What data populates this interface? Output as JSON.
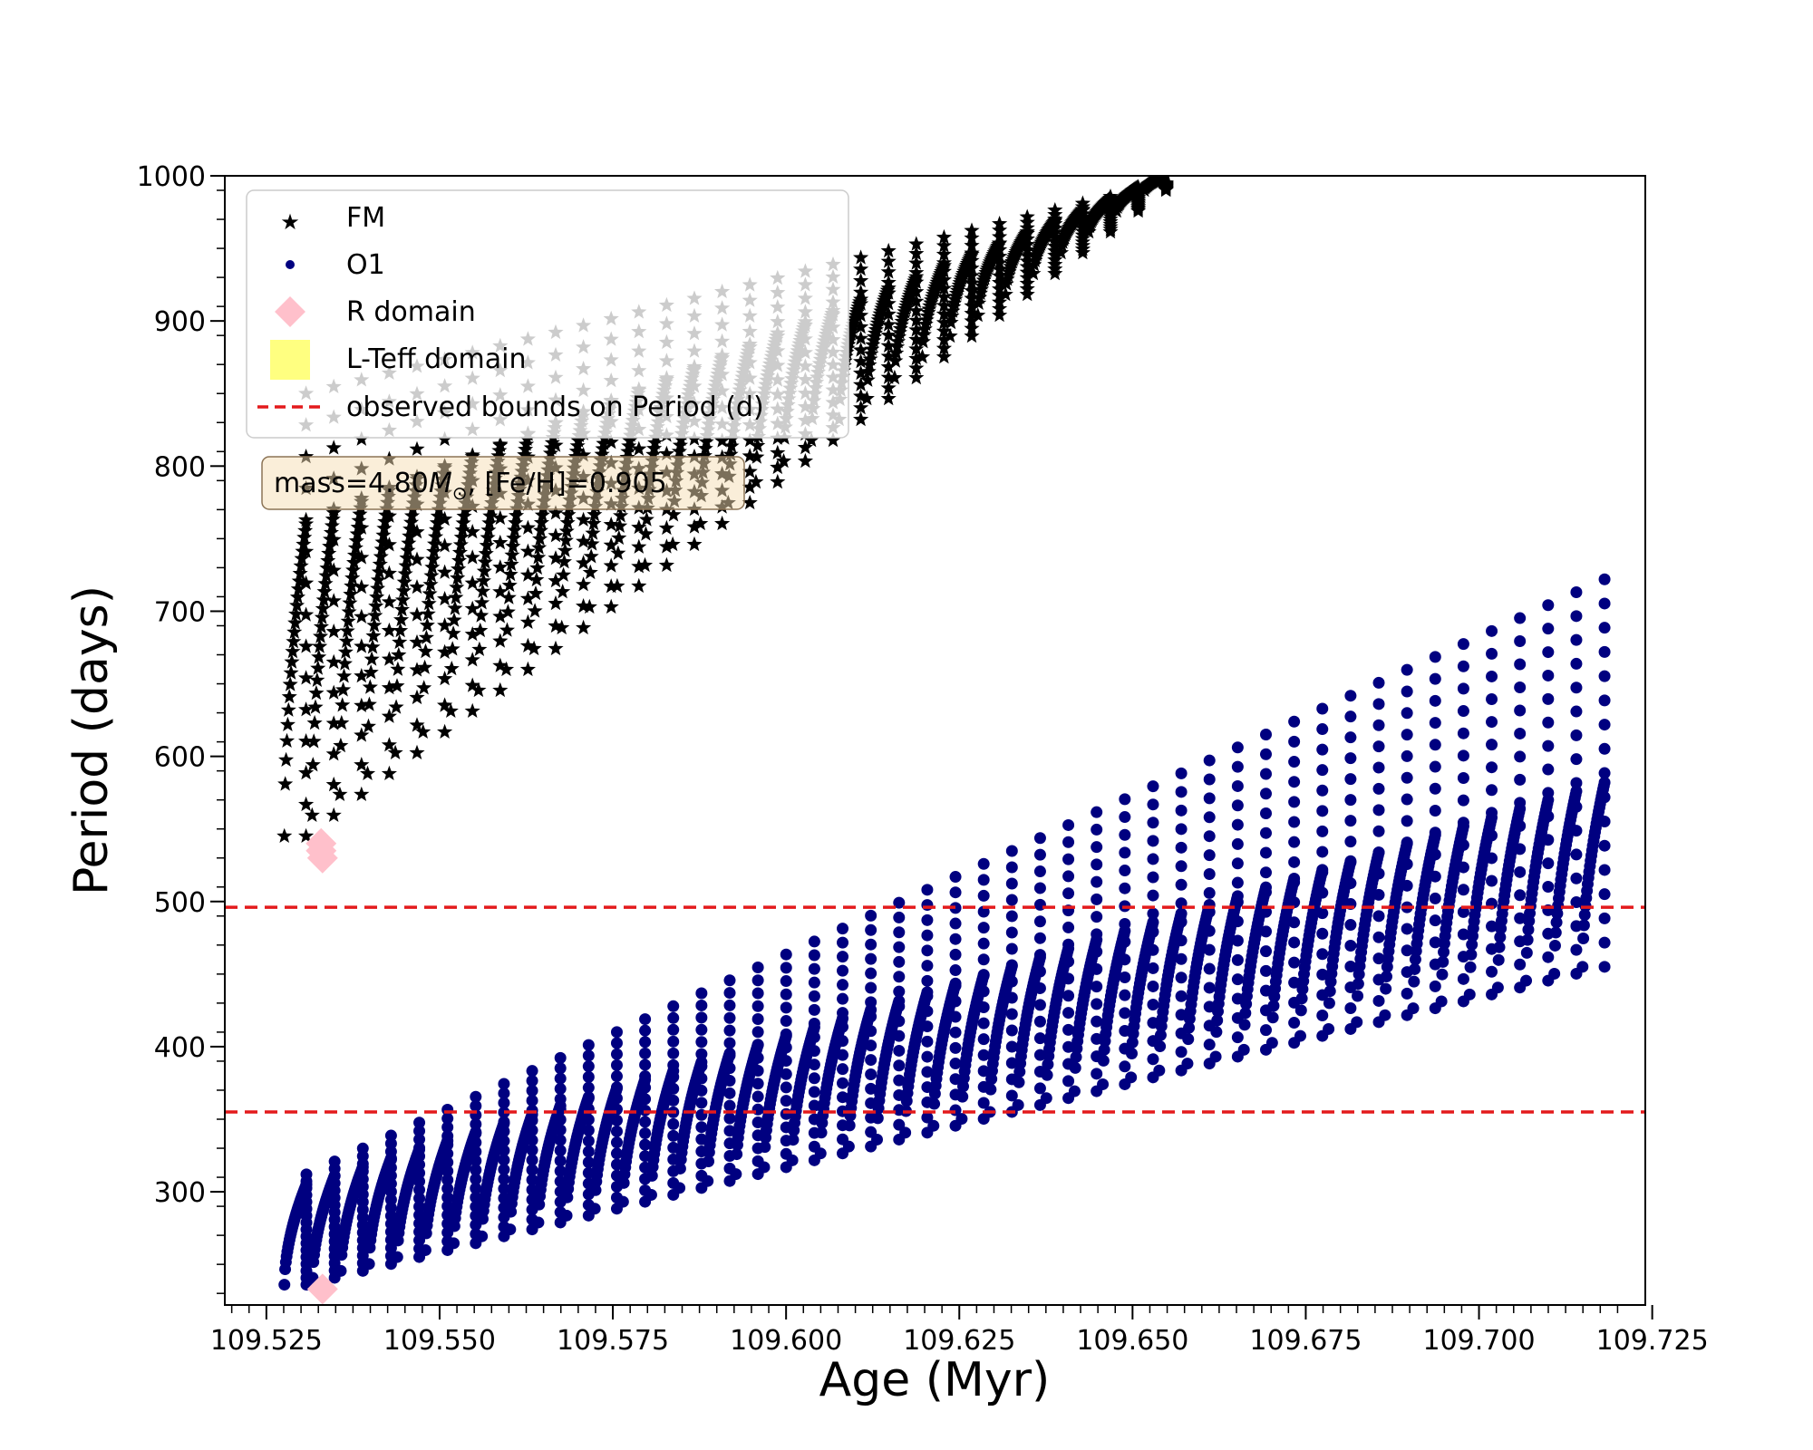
{
  "chart_data": {
    "type": "scatter",
    "xlabel": "Age (Myr)",
    "ylabel": "Period (days)",
    "xlim": [
      109.519,
      109.724
    ],
    "ylim": [
      222,
      1000
    ],
    "x_ticks": [
      109.525,
      109.55,
      109.575,
      109.6,
      109.625,
      109.65,
      109.675,
      109.7,
      109.725
    ],
    "x_tick_labels": [
      "109.525",
      "109.550",
      "109.575",
      "109.600",
      "109.625",
      "109.650",
      "109.675",
      "109.700",
      "109.725"
    ],
    "y_ticks": [
      300,
      400,
      500,
      600,
      700,
      800,
      900,
      1000
    ],
    "y_tick_labels": [
      "300",
      "400",
      "500",
      "600",
      "700",
      "800",
      "900",
      "1000"
    ],
    "legend_position": "top-left",
    "annotation": {
      "prefix": "mass=4.80",
      "symbol": "M",
      "subscript": "⊙",
      "suffix": ", [Fe/H]=0.905"
    },
    "bounds": [
      {
        "name": "observed bounds on Period (d)",
        "y": 496,
        "color": "#e31a1c",
        "style": "dashed"
      },
      {
        "name": "observed bounds on Period (d)",
        "y": 355,
        "color": "#e31a1c",
        "style": "dashed"
      }
    ],
    "series": [
      {
        "name": "FM",
        "marker": "star",
        "color": "#000000",
        "age_start": 109.5276,
        "age_end": 109.6547,
        "cycles": 32,
        "period_min_start": 545,
        "period_min_end": 990,
        "period_max_start": 760,
        "period_max_end": 1000,
        "period_tip_start": 850,
        "period_tip_end": 995
      },
      {
        "name": "O1",
        "marker": "circle",
        "color": "#000080",
        "age_start": 109.5276,
        "age_end": 109.718,
        "cycles": 47,
        "period_min_start": 236,
        "period_min_end": 455,
        "period_max_start": 305,
        "period_max_end": 582,
        "period_tip_start": 312,
        "period_tip_end": 722
      },
      {
        "name": "R domain",
        "marker": "diamond",
        "color": "#ffc0cb",
        "points": [
          [
            109.5329,
            540
          ],
          [
            109.5329,
            535
          ],
          [
            109.5331,
            530
          ],
          [
            109.5331,
            233
          ]
        ]
      },
      {
        "name": "L-Teff domain",
        "marker": "square",
        "color": "#ffff80",
        "points": []
      }
    ],
    "legend": [
      "FM",
      "O1",
      "R domain",
      "L-Teff domain",
      "observed bounds on Period (d)"
    ]
  }
}
